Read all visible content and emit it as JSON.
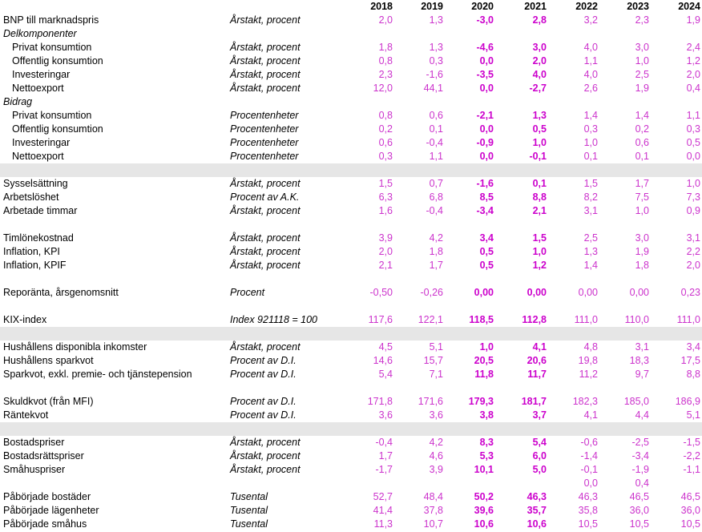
{
  "columns": [
    "2018",
    "2019",
    "2020",
    "2021",
    "2022",
    "2023",
    "2024"
  ],
  "rows": [
    {
      "type": "data",
      "label": "BNP till marknadspris",
      "unit": "Årstakt, procent",
      "values": [
        "2,0",
        "1,3",
        "-3,0",
        "2,8",
        "3,2",
        "2,3",
        "1,9"
      ]
    },
    {
      "type": "section",
      "label": "Delkomponenter"
    },
    {
      "type": "data",
      "indent": true,
      "label": "Privat konsumtion",
      "unit": "Årstakt, procent",
      "values": [
        "1,8",
        "1,3",
        "-4,6",
        "3,0",
        "4,0",
        "3,0",
        "2,4"
      ]
    },
    {
      "type": "data",
      "indent": true,
      "label": "Offentlig konsumtion",
      "unit": "Årstakt, procent",
      "values": [
        "0,8",
        "0,3",
        "0,0",
        "2,0",
        "1,1",
        "1,0",
        "1,2"
      ]
    },
    {
      "type": "data",
      "indent": true,
      "label": "Investeringar",
      "unit": "Årstakt, procent",
      "values": [
        "2,3",
        "-1,6",
        "-3,5",
        "4,0",
        "4,0",
        "2,5",
        "2,0"
      ]
    },
    {
      "type": "data",
      "indent": true,
      "label": "Nettoexport",
      "unit": "Årstakt, procent",
      "values": [
        "12,0",
        "44,1",
        "0,0",
        "-2,7",
        "2,6",
        "1,9",
        "0,4"
      ]
    },
    {
      "type": "section",
      "label": "Bidrag"
    },
    {
      "type": "data",
      "indent": true,
      "label": "Privat konsumtion",
      "unit": "Procentenheter",
      "values": [
        "0,8",
        "0,6",
        "-2,1",
        "1,3",
        "1,4",
        "1,4",
        "1,1"
      ]
    },
    {
      "type": "data",
      "indent": true,
      "label": "Offentlig konsumtion",
      "unit": "Procentenheter",
      "values": [
        "0,2",
        "0,1",
        "0,0",
        "0,5",
        "0,3",
        "0,2",
        "0,3"
      ]
    },
    {
      "type": "data",
      "indent": true,
      "label": "Investeringar",
      "unit": "Procentenheter",
      "values": [
        "0,6",
        "-0,4",
        "-0,9",
        "1,0",
        "1,0",
        "0,6",
        "0,5"
      ]
    },
    {
      "type": "data",
      "indent": true,
      "label": "Nettoexport",
      "unit": "Procentenheter",
      "values": [
        "0,3",
        "1,1",
        "0,0",
        "-0,1",
        "0,1",
        "0,1",
        "0,0"
      ]
    },
    {
      "type": "gap"
    },
    {
      "type": "data",
      "label": "Sysselsättning",
      "unit": "Årstakt, procent",
      "values": [
        "1,5",
        "0,7",
        "-1,6",
        "0,1",
        "1,5",
        "1,7",
        "1,0"
      ]
    },
    {
      "type": "data",
      "label": "Arbetslöshet",
      "unit": "Procent av A.K.",
      "values": [
        "6,3",
        "6,8",
        "8,5",
        "8,8",
        "8,2",
        "7,5",
        "7,3"
      ]
    },
    {
      "type": "data",
      "label": "Arbetade timmar",
      "unit": "Årstakt, procent",
      "values": [
        "1,6",
        "-0,4",
        "-3,4",
        "2,1",
        "3,1",
        "1,0",
        "0,9"
      ]
    },
    {
      "type": "blank"
    },
    {
      "type": "data",
      "label": "Timlönekostnad",
      "unit": "Årstakt, procent",
      "values": [
        "3,9",
        "4,2",
        "3,4",
        "1,5",
        "2,5",
        "3,0",
        "3,1"
      ]
    },
    {
      "type": "data",
      "label": "Inflation, KPI",
      "unit": "Årstakt, procent",
      "values": [
        "2,0",
        "1,8",
        "0,5",
        "1,0",
        "1,3",
        "1,9",
        "2,2"
      ]
    },
    {
      "type": "data",
      "label": "Inflation, KPIF",
      "unit": "Årstakt, procent",
      "values": [
        "2,1",
        "1,7",
        "0,5",
        "1,2",
        "1,4",
        "1,8",
        "2,0"
      ]
    },
    {
      "type": "blank"
    },
    {
      "type": "data",
      "label": "Reporänta, årsgenomsnitt",
      "unit": "Procent",
      "values": [
        "-0,50",
        "-0,26",
        "0,00",
        "0,00",
        "0,00",
        "0,00",
        "0,23"
      ]
    },
    {
      "type": "blank"
    },
    {
      "type": "data",
      "label": "KIX-index",
      "unit": "Index 921118 = 100",
      "values": [
        "117,6",
        "122,1",
        "118,5",
        "112,8",
        "111,0",
        "110,0",
        "111,0"
      ]
    },
    {
      "type": "gap"
    },
    {
      "type": "data",
      "label": "Hushållens disponibla inkomster",
      "unit": "Årstakt, procent",
      "values": [
        "4,5",
        "5,1",
        "1,0",
        "4,1",
        "4,8",
        "3,1",
        "3,4"
      ]
    },
    {
      "type": "data",
      "label": "Hushållens sparkvot",
      "unit": "Procent av D.I.",
      "values": [
        "14,6",
        "15,7",
        "20,5",
        "20,6",
        "19,8",
        "18,3",
        "17,5"
      ]
    },
    {
      "type": "data",
      "label": "Sparkvot, exkl. premie- och tjänstepension",
      "unit": "Procent av D.I.",
      "values": [
        "5,4",
        "7,1",
        "11,8",
        "11,7",
        "11,2",
        "9,7",
        "8,8"
      ]
    },
    {
      "type": "blank"
    },
    {
      "type": "data",
      "label": "Skuldkvot (från MFI)",
      "unit": "Procent av D.I.",
      "values": [
        "171,8",
        "171,6",
        "179,3",
        "181,7",
        "182,3",
        "185,0",
        "186,9"
      ]
    },
    {
      "type": "data",
      "label": "Räntekvot",
      "unit": "Procent av D.I.",
      "values": [
        "3,6",
        "3,6",
        "3,8",
        "3,7",
        "4,1",
        "4,4",
        "5,1"
      ]
    },
    {
      "type": "gap"
    },
    {
      "type": "data",
      "label": "Bostadspriser",
      "unit": "Årstakt, procent",
      "values": [
        "-0,4",
        "4,2",
        "8,3",
        "5,4",
        "-0,6",
        "-2,5",
        "-1,5"
      ]
    },
    {
      "type": "data",
      "label": "Bostadsrättspriser",
      "unit": "Årstakt, procent",
      "values": [
        "1,7",
        "4,6",
        "5,3",
        "6,0",
        "-1,4",
        "-3,4",
        "-2,2"
      ]
    },
    {
      "type": "data",
      "label": "Småhuspriser",
      "unit": "Årstakt, procent",
      "values": [
        "-1,7",
        "3,9",
        "10,1",
        "5,0",
        "-0,1",
        "-1,9",
        "-1,1"
      ]
    },
    {
      "type": "extra",
      "values": [
        "",
        "",
        "",
        "",
        "0,0",
        "0,4",
        ""
      ]
    },
    {
      "type": "data",
      "label": "Påbörjade bostäder",
      "unit": "Tusental",
      "values": [
        "52,7",
        "48,4",
        "50,2",
        "46,3",
        "46,3",
        "46,5",
        "46,5"
      ]
    },
    {
      "type": "data",
      "label": "Påbörjade lägenheter",
      "unit": "Tusental",
      "values": [
        "41,4",
        "37,8",
        "39,6",
        "35,7",
        "35,8",
        "36,0",
        "36,0"
      ]
    },
    {
      "type": "data",
      "label": "Påbörjade småhus",
      "unit": "Tusental",
      "values": [
        "11,3",
        "10,7",
        "10,6",
        "10,6",
        "10,5",
        "10,5",
        "10,5"
      ]
    }
  ]
}
